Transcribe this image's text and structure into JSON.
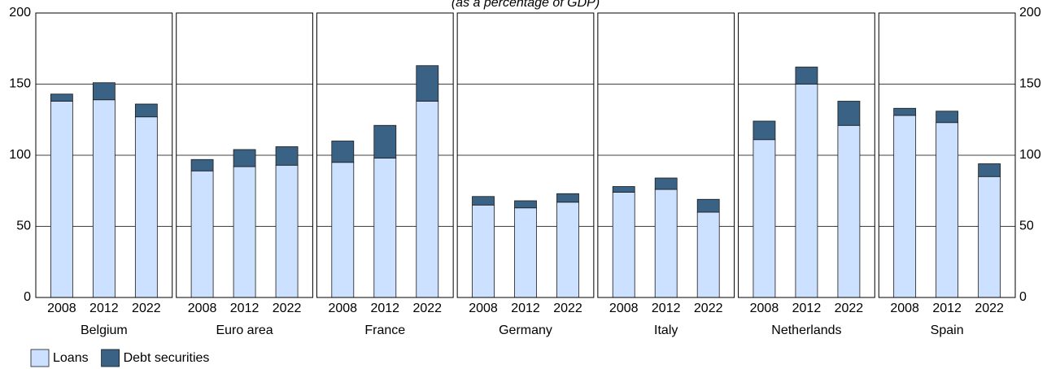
{
  "chart_data": {
    "type": "bar",
    "stacked": true,
    "subtitle": "(as a percentage of GDP)",
    "groups": [
      "Belgium",
      "Euro area",
      "France",
      "Germany",
      "Italy",
      "Netherlands",
      "Spain"
    ],
    "categories": [
      "2008",
      "2012",
      "2022"
    ],
    "series": [
      {
        "name": "Loans",
        "color": "#cce0ff",
        "values": [
          [
            138,
            139,
            127
          ],
          [
            89,
            92,
            93
          ],
          [
            95,
            98,
            138
          ],
          [
            65,
            63,
            67
          ],
          [
            74,
            76,
            60
          ],
          [
            111,
            150,
            121
          ],
          [
            128,
            123,
            85
          ]
        ]
      },
      {
        "name": "Debt securities",
        "color": "#3a6285",
        "values": [
          [
            5,
            12,
            9
          ],
          [
            8,
            12,
            13
          ],
          [
            15,
            23,
            25
          ],
          [
            6,
            5,
            6
          ],
          [
            4,
            8,
            9
          ],
          [
            13,
            12,
            17
          ],
          [
            5,
            8,
            9
          ]
        ]
      }
    ],
    "ylim": [
      0,
      200
    ],
    "yticks": [
      0,
      50,
      100,
      150,
      200
    ],
    "grid": true
  }
}
